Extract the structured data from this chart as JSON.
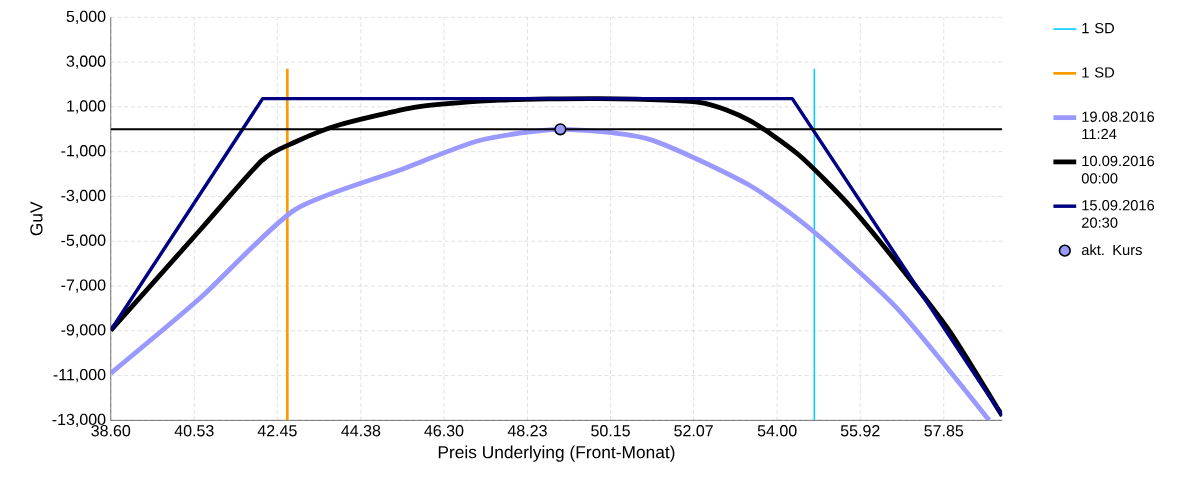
{
  "chart_data": {
    "type": "line",
    "xlabel": "Preis Underlying (Front-Monat)",
    "ylabel": "GuV",
    "xlim": [
      38.6,
      59.2
    ],
    "ylim": [
      -13000,
      5000
    ],
    "xticks": [
      {
        "value": 38.6,
        "label": "38.60"
      },
      {
        "value": 40.53,
        "label": "40.53"
      },
      {
        "value": 42.45,
        "label": "42.45"
      },
      {
        "value": 44.38,
        "label": "44.38"
      },
      {
        "value": 46.3,
        "label": "46.30"
      },
      {
        "value": 48.23,
        "label": "48.23"
      },
      {
        "value": 50.15,
        "label": "50.15"
      },
      {
        "value": 52.07,
        "label": "52.07"
      },
      {
        "value": 54.0,
        "label": "54.00"
      },
      {
        "value": 55.92,
        "label": "55.92"
      },
      {
        "value": 57.85,
        "label": "57.85"
      }
    ],
    "yticks": [
      {
        "value": 5000,
        "label": "5,000"
      },
      {
        "value": 3000,
        "label": "3,000"
      },
      {
        "value": 1000,
        "label": "1,000"
      },
      {
        "value": -1000,
        "label": "-1,000"
      },
      {
        "value": -3000,
        "label": "-3,000"
      },
      {
        "value": -5000,
        "label": "-5,000"
      },
      {
        "value": -7000,
        "label": "-7,000"
      },
      {
        "value": -9000,
        "label": "-9,000"
      },
      {
        "value": -11000,
        "label": "-11,000"
      },
      {
        "value": -13000,
        "label": "-13,000"
      }
    ],
    "grid": true,
    "legend": "right",
    "line_style": "solid",
    "ref_lines": [
      {
        "axis": "y",
        "value": 0,
        "color": "#000000"
      }
    ],
    "series": [
      {
        "name": "1 SD",
        "type": "line",
        "color": "#00ccff",
        "x": [
          54.86,
          54.86
        ],
        "values": [
          -13000,
          2700
        ]
      },
      {
        "name": "1 SD",
        "type": "line",
        "color": "#ff9900",
        "x": [
          42.68,
          42.68
        ],
        "values": [
          -13000,
          2700
        ]
      },
      {
        "name": "19.08.2016 11:24",
        "color": "#9999ff",
        "x": [
          38.6,
          40.66,
          42.85,
          45.27,
          47.12,
          48.99,
          51.05,
          53.36,
          54.86,
          56.82,
          58.9
        ],
        "values": [
          -10900,
          -7550,
          -3600,
          -1830,
          -500,
          0,
          -450,
          -2500,
          -4600,
          -8100,
          -13000
        ]
      },
      {
        "name": "10.09.2016 00:00",
        "color": "#000000",
        "x": [
          38.6,
          40.66,
          42.09,
          42.85,
          43.89,
          45.69,
          47.58,
          49.89,
          52.2,
          53.36,
          54.51,
          55.67,
          56.82,
          57.98,
          59.2
        ],
        "values": [
          -8980,
          -4510,
          -1400,
          -580,
          200,
          1000,
          1300,
          1370,
          1200,
          400,
          -1160,
          -3400,
          -6080,
          -9000,
          -12800
        ]
      },
      {
        "name": "15.09.2016 20:30",
        "color": "#000080",
        "x": [
          38.6,
          42.11,
          54.35,
          59.2
        ],
        "values": [
          -8980,
          1370,
          1370,
          -12800
        ]
      },
      {
        "name": "akt. Kurs",
        "type": "scatter",
        "marker": "circle",
        "color": "#9999ff",
        "x": [
          48.99
        ],
        "values": [
          0
        ]
      }
    ]
  }
}
